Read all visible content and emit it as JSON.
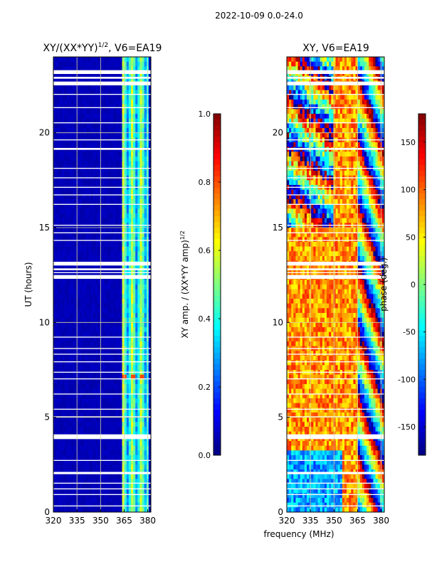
{
  "figure_title": "2022-10-09 0.0-24.0",
  "colors": {
    "jet": [
      "#00007f",
      "#0000ff",
      "#007fff",
      "#00ffff",
      "#7fff7f",
      "#ffff00",
      "#ff7f00",
      "#ff0000",
      "#7f0000"
    ],
    "grid": "#d8d89a",
    "gap": "#ffffff"
  },
  "chart_data": [
    {
      "type": "heatmap",
      "panel": "left",
      "title_main": "XY/(XX*YY)",
      "title_sup": "1/2",
      "title_tail": ", V6=EA19",
      "xlabel": "",
      "ylabel": "UT (hours)",
      "xlim": [
        320,
        382
      ],
      "ylim": [
        0,
        24
      ],
      "xticks": [
        320,
        335,
        350,
        365,
        380
      ],
      "yticks": [
        0,
        5,
        10,
        15,
        20
      ],
      "grid": true,
      "description_values": {
        "background_amp": 0.05,
        "band_amp_range": [
          0.2,
          0.55
        ],
        "hot_spot_amp": 0.8
      },
      "colorbar": {
        "label_main": "XY amp. / (XX*YY amp)",
        "label_sup": "1/2",
        "range": [
          0.0,
          1.0
        ],
        "ticks": [
          "0.0",
          "0.2",
          "0.4",
          "0.6",
          "0.8",
          "1.0"
        ]
      }
    },
    {
      "type": "heatmap",
      "panel": "right",
      "title_main": "XY, V6=EA19",
      "xlabel": "frequency (MHz)",
      "ylabel": "",
      "xlim": [
        320,
        382
      ],
      "ylim": [
        0,
        24
      ],
      "xticks": [
        320,
        335,
        350,
        365,
        380
      ],
      "yticks": [
        0,
        5,
        10,
        15,
        20
      ],
      "grid": true,
      "colorbar": {
        "label": "phase (deg.)",
        "range": [
          -180,
          180
        ],
        "ticks": [
          "-150",
          "-100",
          "-50",
          "0",
          "50",
          "100",
          "150"
        ]
      }
    }
  ],
  "gaps_hours": [
    [
      0.3,
      0.35
    ],
    [
      0.9,
      0.95
    ],
    [
      1.2,
      1.25
    ],
    [
      1.5,
      1.55
    ],
    [
      2.0,
      2.12
    ],
    [
      2.7,
      2.75
    ],
    [
      3.85,
      4.1
    ],
    [
      5.0,
      5.05
    ],
    [
      5.4,
      5.45
    ],
    [
      6.2,
      6.25
    ],
    [
      7.0,
      7.05
    ],
    [
      7.35,
      7.4
    ],
    [
      7.9,
      7.95
    ],
    [
      8.3,
      8.35
    ],
    [
      8.6,
      8.65
    ],
    [
      9.2,
      9.25
    ],
    [
      12.3,
      12.5
    ],
    [
      12.6,
      12.65
    ],
    [
      12.75,
      12.85
    ],
    [
      13.0,
      13.2
    ],
    [
      14.3,
      14.35
    ],
    [
      14.7,
      14.75
    ],
    [
      15.1,
      15.15
    ],
    [
      16.2,
      16.25
    ],
    [
      16.7,
      16.75
    ],
    [
      17.1,
      17.15
    ],
    [
      17.6,
      17.65
    ],
    [
      18.1,
      18.15
    ],
    [
      19.1,
      19.2
    ],
    [
      19.6,
      19.65
    ],
    [
      20.5,
      20.55
    ],
    [
      21.3,
      21.35
    ],
    [
      22.0,
      22.05
    ],
    [
      22.5,
      22.7
    ],
    [
      22.85,
      22.95
    ],
    [
      23.1,
      23.3
    ]
  ]
}
